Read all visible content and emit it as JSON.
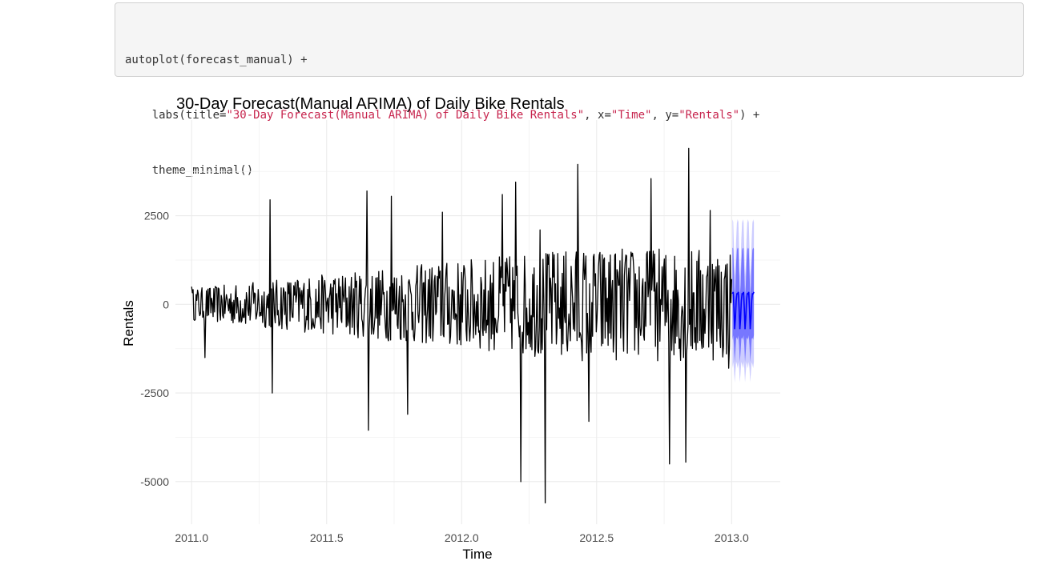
{
  "code": {
    "lines": [
      [
        {
          "t": "autoplot(forecast_manual) +",
          "k": "plain"
        }
      ],
      [
        {
          "t": "    labs(title=",
          "k": "plain"
        },
        {
          "t": "\"30-Day Forecast(Manual ARIMA) of Daily Bike Rentals\"",
          "k": "str"
        },
        {
          "t": ", x=",
          "k": "plain"
        },
        {
          "t": "\"Time\"",
          "k": "str"
        },
        {
          "t": ", y=",
          "k": "plain"
        },
        {
          "t": "\"Rentals\"",
          "k": "str"
        },
        {
          "t": ") +",
          "k": "plain"
        }
      ],
      [
        {
          "t": "    theme_minimal()",
          "k": "plain"
        }
      ]
    ]
  },
  "chart_data": {
    "type": "line",
    "title": "30-Day Forecast(Manual ARIMA) of Daily Bike Rentals",
    "xlabel": "Time",
    "ylabel": "Rentals",
    "xlim": [
      2010.94,
      2013.18
    ],
    "ylim": [
      -6200,
      5200
    ],
    "x_ticks": [
      2011.0,
      2011.5,
      2012.0,
      2012.5,
      2013.0
    ],
    "x_tick_labels": [
      "2011.0",
      "2011.5",
      "2012.0",
      "2012.5",
      "2013.0"
    ],
    "y_ticks": [
      -5000,
      -2500,
      0,
      2500
    ],
    "y_tick_labels": [
      "-5000",
      "-2500",
      "0",
      "2500"
    ],
    "grid": true,
    "colors": {
      "series": "#000000",
      "forecast": "#0000ff",
      "band80": "#5a5aff",
      "band95": "#b8b8ff"
    },
    "series": {
      "start": 2011.0,
      "step_days": 1,
      "landmarks": [
        {
          "x": 2011.0,
          "y": 500
        },
        {
          "x": 2011.05,
          "y": -1500
        },
        {
          "x": 2011.29,
          "y": 2950
        },
        {
          "x": 2011.3,
          "y": -2500
        },
        {
          "x": 2011.65,
          "y": 3200
        },
        {
          "x": 2011.655,
          "y": -3550
        },
        {
          "x": 2011.74,
          "y": 3050
        },
        {
          "x": 2011.8,
          "y": -3100
        },
        {
          "x": 2011.93,
          "y": 2600
        },
        {
          "x": 2012.15,
          "y": 3100
        },
        {
          "x": 2012.2,
          "y": 3450
        },
        {
          "x": 2012.22,
          "y": -5000
        },
        {
          "x": 2012.29,
          "y": 2100
        },
        {
          "x": 2012.31,
          "y": -5600
        },
        {
          "x": 2012.43,
          "y": 3950
        },
        {
          "x": 2012.47,
          "y": -3300
        },
        {
          "x": 2012.7,
          "y": 3550
        },
        {
          "x": 2012.77,
          "y": -4500
        },
        {
          "x": 2012.83,
          "y": -4450
        },
        {
          "x": 2012.84,
          "y": 4400
        },
        {
          "x": 2012.92,
          "y": 2650
        },
        {
          "x": 2012.99,
          "y": -1800
        }
      ]
    },
    "forecast": {
      "start": 2013.003,
      "horizon_days": 30,
      "weekly_pattern": [
        300,
        350,
        -100,
        -700,
        -400,
        100,
        300
      ],
      "band80_halfwidth": 1300,
      "band95_halfwidth": 2100
    }
  }
}
